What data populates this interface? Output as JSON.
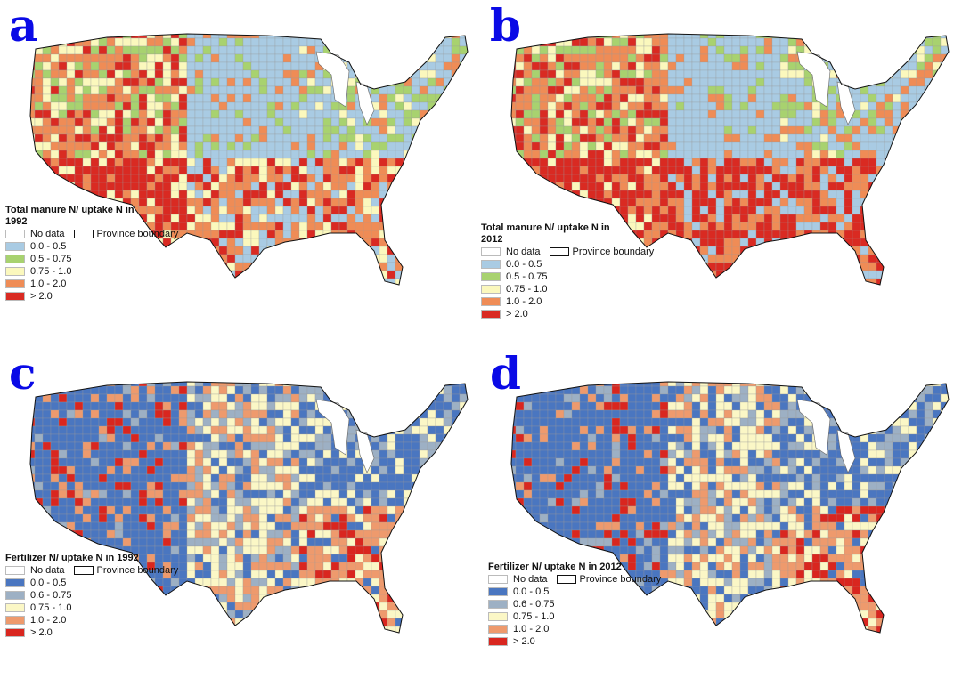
{
  "figure": {
    "colors": {
      "no_data": "#ffffff",
      "province_boundary": "#111111",
      "manure_scale": [
        "#a9cbe3",
        "#a8d26f",
        "#fbf8bd",
        "#ef8c56",
        "#d92a22"
      ],
      "fertilizer_scale": [
        "#4a76c0",
        "#9db0c4",
        "#fbf7c6",
        "#ee9a6d",
        "#d9261f"
      ],
      "panel_letter_color": "#0a0ae6"
    },
    "panels": [
      {
        "id": "a",
        "letter": "a",
        "legend_title": "Total manure N/ uptake N in 1992",
        "no_data_label": "No data",
        "boundary_label": "Province boundary",
        "classes": [
          "0.0 - 0.5",
          "0.5 - 0.75",
          "0.75 - 1.0",
          "1.0 - 2.0",
          "> 2.0"
        ],
        "scale": "manure"
      },
      {
        "id": "b",
        "letter": "b",
        "legend_title": "Total manure N/ uptake N in 2012",
        "no_data_label": "No data",
        "boundary_label": "Province boundary",
        "classes": [
          "0.0 - 0.5",
          "0.5 - 0.75",
          "0.75 - 1.0",
          "1.0 - 2.0",
          "> 2.0"
        ],
        "scale": "manure"
      },
      {
        "id": "c",
        "letter": "c",
        "legend_title": "Fertilizer N/ uptake N in 1992",
        "no_data_label": "No data",
        "boundary_label": "Province boundary",
        "classes": [
          "0.0 - 0.5",
          "0.6 - 0.75",
          "0.75 - 1.0",
          "1.0 - 2.0",
          "> 2.0"
        ],
        "scale": "fertilizer"
      },
      {
        "id": "d",
        "letter": "d",
        "legend_title": "Fertilizer N/ uptake N in 2012",
        "no_data_label": "No data",
        "boundary_label": "Province boundary",
        "classes": [
          "0.0 - 0.5",
          "0.6 - 0.75",
          "0.75 - 1.0",
          "1.0 - 2.0",
          "> 2.0"
        ],
        "scale": "fertilizer"
      }
    ]
  }
}
